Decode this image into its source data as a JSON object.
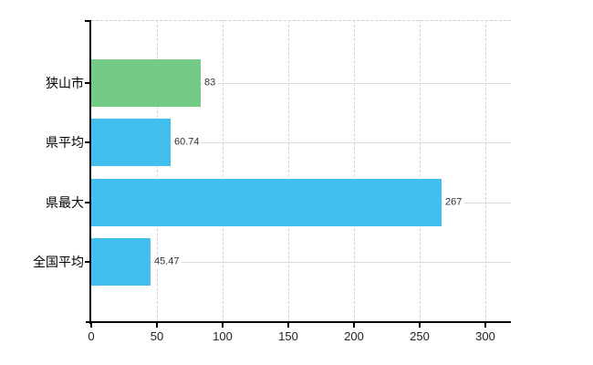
{
  "chart_data": {
    "type": "bar",
    "orientation": "horizontal",
    "title": "",
    "xlabel": "",
    "ylabel": "",
    "categories": [
      "狭山市",
      "県平均",
      "県最大",
      "全国平均"
    ],
    "values": [
      83,
      60.74,
      267,
      45.47
    ],
    "value_labels": [
      "83",
      "60.74",
      "267",
      "45.47"
    ],
    "bar_colors": [
      "#74cb85",
      "#41bfee",
      "#41bfee",
      "#41bfee"
    ],
    "x_ticks": [
      0,
      50,
      100,
      150,
      200,
      250,
      300
    ],
    "x_tick_labels": [
      "0",
      "50",
      "100",
      "150",
      "200",
      "250",
      "300"
    ],
    "xlim": [
      0,
      319
    ],
    "grid": true,
    "legend_position": "none"
  },
  "colors": {
    "bar_green": "#74cb85",
    "bar_blue": "#41bfee",
    "grid": "#d4d4d4",
    "axis": "#000000",
    "text": "#222222",
    "value_text": "#333333",
    "background": "#ffffff"
  }
}
